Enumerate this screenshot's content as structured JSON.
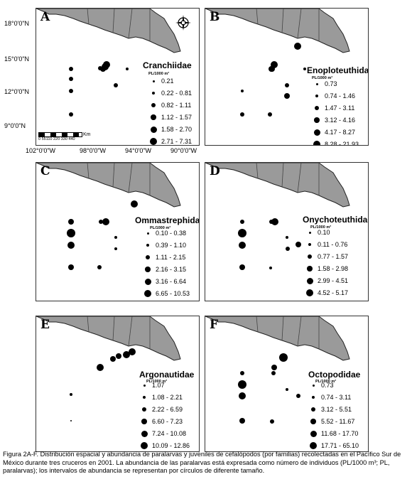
{
  "axes": {
    "y_labels": [
      "18°0'0\"N",
      "15°0'0\"N",
      "12°0'0\"N",
      "9°0'0\"N"
    ],
    "x_labels": [
      "102°0'0\"W",
      "98°0'0\"W",
      "94°0'0\"W",
      "90°0'0\"W"
    ]
  },
  "scale_bar": {
    "ticks": "0 55110  220  330  440",
    "unit": "Km"
  },
  "unit_label": "PL/1000 m³",
  "panels": [
    {
      "letter": "A",
      "family": "Cranchiidae",
      "legend": [
        "0.21",
        "0.22 - 0.81",
        "0.82 - 1.11",
        "1.12 - 1.57",
        "1.58 - 2.70",
        "2.71 - 7.31"
      ]
    },
    {
      "letter": "B",
      "family": "Enoploteuthidae",
      "legend": [
        "0.73",
        "0.74 - 1.46",
        "1.47 - 3.11",
        "3.12 - 4.16",
        "4.17 - 8.27",
        "8.28 - 21.93"
      ]
    },
    {
      "letter": "C",
      "family": "Ommastrephidae",
      "legend": [
        "0.10 - 0.38",
        "0.39 - 1.10",
        "1.11 - 2.15",
        "2.16 - 3.15",
        "3.16 - 6.64",
        "6.65 - 10.53"
      ]
    },
    {
      "letter": "D",
      "family": "Onychoteuthidae",
      "legend": [
        "0.10",
        "0.11 - 0.76",
        "0.77 - 1.57",
        "1.58 - 2.98",
        "2.99 - 4.51",
        "4.52 - 5.17"
      ]
    },
    {
      "letter": "E",
      "family": "Argonautidae",
      "legend": [
        "1.07",
        "1.08 - 2.21",
        "2.22 - 6.59",
        "6.60 - 7.23",
        "7.24 - 10.08",
        "10.09 - 12.86"
      ]
    },
    {
      "letter": "F",
      "family": "Octopodidae",
      "legend": [
        "0.73",
        "0.74 - 3.11",
        "3.12 - 5.51",
        "5.52 - 11.67",
        "11.68 - 17.70",
        "17.71 - 65.10"
      ]
    }
  ],
  "caption": "Figura 2A-F. Distribución espacial y abundancia de paralarvas y juveniles de cefalópodos (por familias) recolectadas en el Pacífico Sur de México durante tres cruceros en 2001. La abundancia de las paralarvas está expresada como número de individuos (PL/1000 m³; PL, paralarvas); los intervalos de abundancia se representan por círculos de diferente tamaño.",
  "colors": {
    "land": "#9a9a9a",
    "coast": "#222222",
    "dots": "#000000"
  }
}
